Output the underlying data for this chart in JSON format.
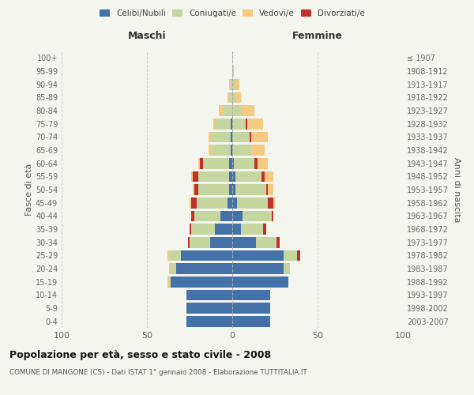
{
  "age_groups": [
    "0-4",
    "5-9",
    "10-14",
    "15-19",
    "20-24",
    "25-29",
    "30-34",
    "35-39",
    "40-44",
    "45-49",
    "50-54",
    "55-59",
    "60-64",
    "65-69",
    "70-74",
    "75-79",
    "80-84",
    "85-89",
    "90-94",
    "95-99",
    "100+"
  ],
  "birth_years": [
    "2003-2007",
    "1998-2002",
    "1993-1997",
    "1988-1992",
    "1983-1987",
    "1978-1982",
    "1973-1977",
    "1968-1972",
    "1963-1967",
    "1958-1962",
    "1953-1957",
    "1948-1952",
    "1943-1947",
    "1938-1942",
    "1933-1937",
    "1928-1932",
    "1923-1927",
    "1918-1922",
    "1913-1917",
    "1908-1912",
    "≤ 1907"
  ],
  "maschi": {
    "celibi": [
      27,
      27,
      27,
      36,
      33,
      30,
      13,
      10,
      7,
      3,
      2,
      2,
      2,
      1,
      1,
      1,
      0,
      0,
      0,
      0,
      0
    ],
    "coniugati": [
      0,
      0,
      0,
      1,
      3,
      7,
      12,
      14,
      15,
      18,
      18,
      18,
      15,
      11,
      11,
      9,
      5,
      2,
      1,
      0,
      0
    ],
    "vedovi": [
      0,
      0,
      0,
      1,
      1,
      1,
      0,
      0,
      0,
      1,
      1,
      1,
      1,
      2,
      2,
      1,
      3,
      1,
      1,
      0,
      0
    ],
    "divorziati": [
      0,
      0,
      0,
      0,
      0,
      0,
      1,
      1,
      2,
      3,
      2,
      3,
      2,
      0,
      0,
      0,
      0,
      0,
      0,
      0,
      0
    ]
  },
  "femmine": {
    "nubili": [
      22,
      22,
      22,
      33,
      30,
      30,
      14,
      5,
      6,
      3,
      2,
      2,
      1,
      0,
      0,
      0,
      0,
      0,
      0,
      0,
      0
    ],
    "coniugate": [
      0,
      0,
      0,
      0,
      4,
      8,
      12,
      13,
      17,
      18,
      18,
      15,
      12,
      11,
      10,
      8,
      5,
      2,
      2,
      1,
      0
    ],
    "vedove": [
      0,
      0,
      0,
      0,
      0,
      0,
      0,
      0,
      0,
      1,
      3,
      5,
      6,
      8,
      10,
      9,
      8,
      3,
      2,
      0,
      0
    ],
    "divorziate": [
      0,
      0,
      0,
      0,
      0,
      2,
      2,
      2,
      1,
      3,
      1,
      2,
      2,
      0,
      1,
      1,
      0,
      0,
      0,
      0,
      0
    ]
  },
  "colors": {
    "celibi_nubili": "#4472a8",
    "coniugati": "#c5d6a0",
    "vedovi": "#f5c97f",
    "divorziati": "#c0312b"
  },
  "xlim": 100,
  "title": "Popolazione per età, sesso e stato civile - 2008",
  "subtitle": "COMUNE DI MANGONE (CS) - Dati ISTAT 1° gennaio 2008 - Elaborazione TUTTITALIA.IT",
  "ylabel_left": "Fasce di età",
  "ylabel_right": "Anni di nascita",
  "xlabel_left": "Maschi",
  "xlabel_right": "Femmine",
  "bg_color": "#f5f5f0"
}
